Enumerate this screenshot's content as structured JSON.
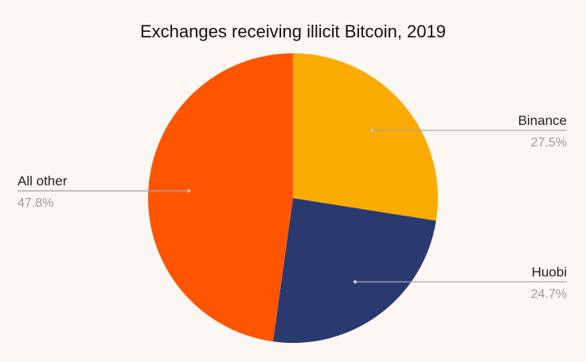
{
  "chart_data": {
    "type": "pie",
    "title": "Exchanges receiving illicit Bitcoin, 2019",
    "slices": [
      {
        "label": "Binance",
        "value": 27.5,
        "display": "27.5%",
        "color": "#f9ab00",
        "side": "right"
      },
      {
        "label": "Huobi",
        "value": 24.7,
        "display": "24.7%",
        "color": "#2a3a70",
        "side": "right"
      },
      {
        "label": "All other",
        "value": 47.8,
        "display": "47.8%",
        "color": "#ff5500",
        "side": "left"
      }
    ],
    "start_angle": "top",
    "direction": "clockwise",
    "legend": "callout labels"
  }
}
